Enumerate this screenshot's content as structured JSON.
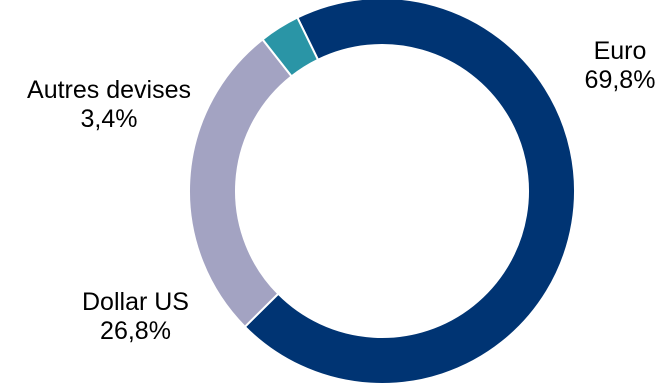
{
  "chart_data": {
    "type": "pie",
    "variant": "donut",
    "slices": [
      {
        "label": "Euro",
        "value_label": "69,8%",
        "value": 69.8,
        "color": "#003473"
      },
      {
        "label": "Dollar US",
        "value_label": "26,8%",
        "value": 26.8,
        "color": "#a3a3c2"
      },
      {
        "label": "Autres devises",
        "value_label": "3,4%",
        "value": 3.4,
        "color": "#2a95a6"
      }
    ],
    "start_angle_deg": -26,
    "direction": "clockwise",
    "title": "",
    "legend": "none"
  }
}
